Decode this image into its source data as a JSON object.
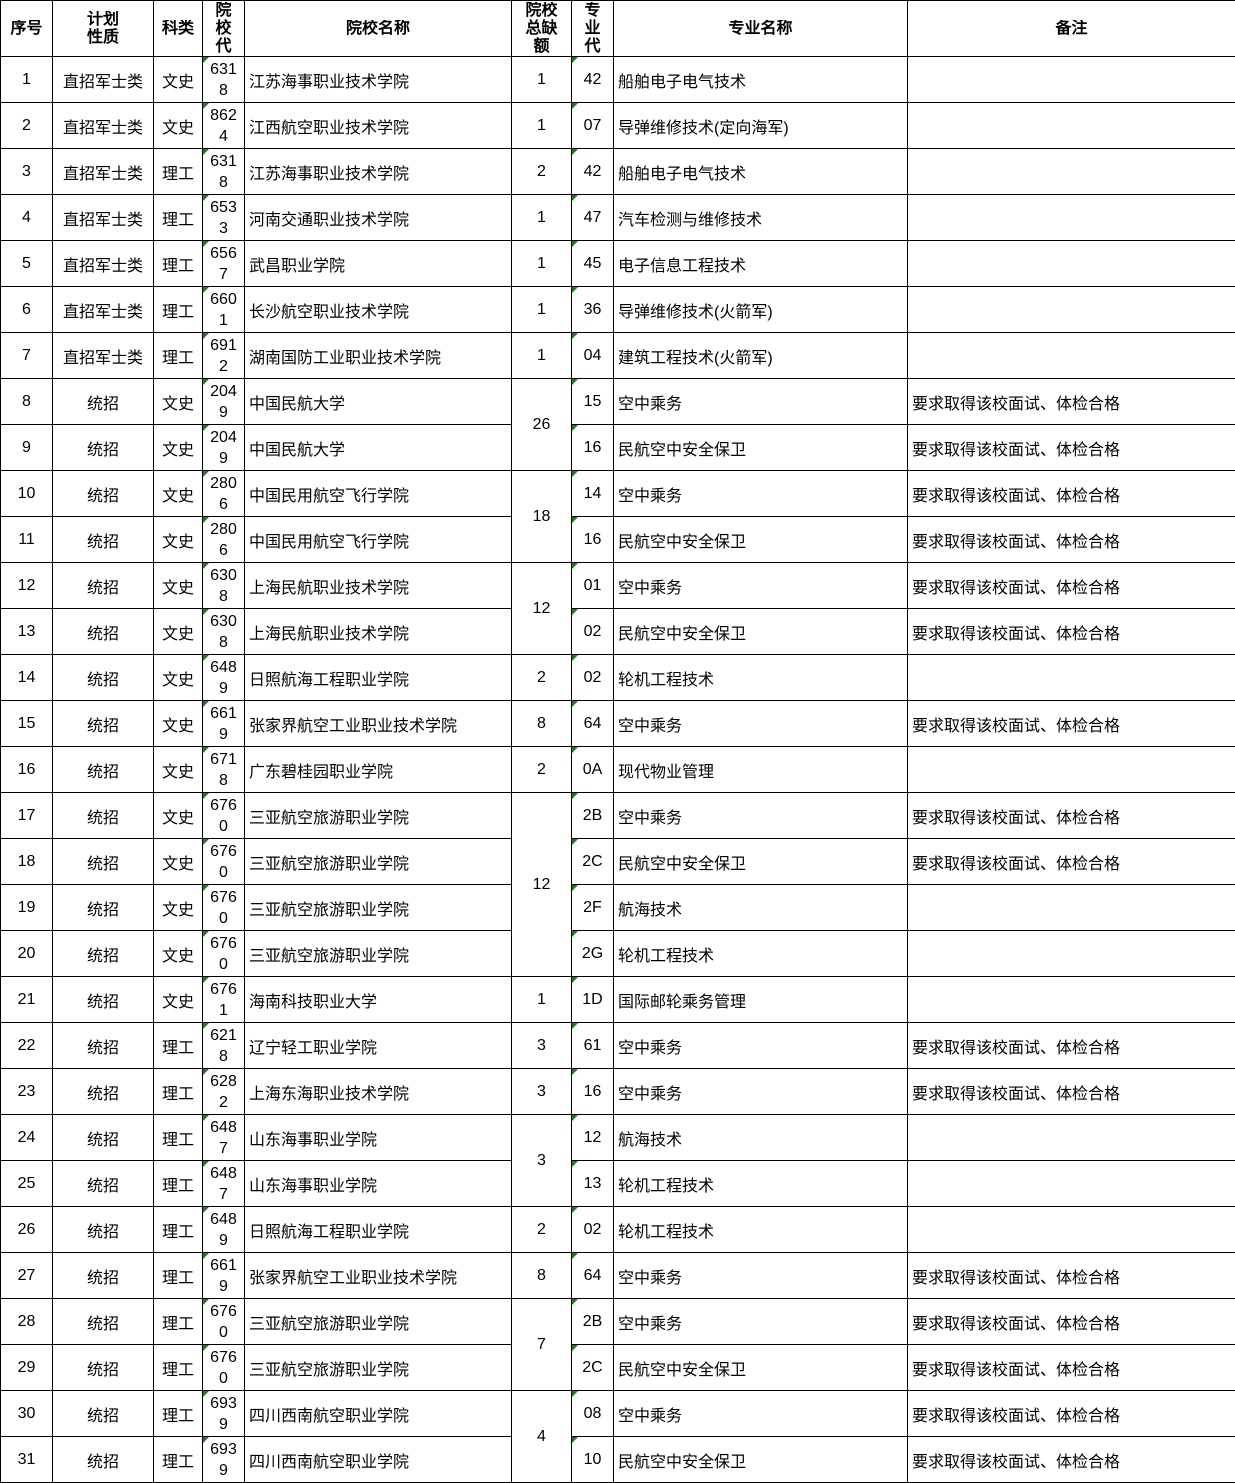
{
  "headers": [
    "序号",
    "计划性质",
    "科类",
    "院校代",
    "院校名称",
    "院校总缺额",
    "专业代",
    "专业名称",
    "备注"
  ],
  "rows": [
    [
      "1",
      "直招军士类",
      "文史",
      "6318",
      "江苏海事职业技术学院",
      "1",
      "42",
      "船舶电子电气技术",
      ""
    ],
    [
      "2",
      "直招军士类",
      "文史",
      "8624",
      "江西航空职业技术学院",
      "1",
      "07",
      "导弹维修技术(定向海军)",
      ""
    ],
    [
      "3",
      "直招军士类",
      "理工",
      "6318",
      "江苏海事职业技术学院",
      "2",
      "42",
      "船舶电子电气技术",
      ""
    ],
    [
      "4",
      "直招军士类",
      "理工",
      "6533",
      "河南交通职业技术学院",
      "1",
      "47",
      "汽车检测与维修技术",
      ""
    ],
    [
      "5",
      "直招军士类",
      "理工",
      "6567",
      "武昌职业学院",
      "1",
      "45",
      "电子信息工程技术",
      ""
    ],
    [
      "6",
      "直招军士类",
      "理工",
      "6601",
      "长沙航空职业技术学院",
      "1",
      "36",
      "导弹维修技术(火箭军)",
      ""
    ],
    [
      "7",
      "直招军士类",
      "理工",
      "6912",
      "湖南国防工业职业技术学院",
      "1",
      "04",
      "建筑工程技术(火箭军)",
      ""
    ],
    [
      "8",
      "统招",
      "文史",
      "2049",
      "中国民航大学",
      "26",
      "15",
      "空中乘务",
      "要求取得该校面试、体检合格"
    ],
    [
      "9",
      "统招",
      "文史",
      "2049",
      "中国民航大学",
      null,
      "16",
      "民航空中安全保卫",
      "要求取得该校面试、体检合格"
    ],
    [
      "10",
      "统招",
      "文史",
      "2806",
      "中国民用航空飞行学院",
      "18",
      "14",
      "空中乘务",
      "要求取得该校面试、体检合格"
    ],
    [
      "11",
      "统招",
      "文史",
      "2806",
      "中国民用航空飞行学院",
      null,
      "16",
      "民航空中安全保卫",
      "要求取得该校面试、体检合格"
    ],
    [
      "12",
      "统招",
      "文史",
      "6308",
      "上海民航职业技术学院",
      "12",
      "01",
      "空中乘务",
      "要求取得该校面试、体检合格"
    ],
    [
      "13",
      "统招",
      "文史",
      "6308",
      "上海民航职业技术学院",
      null,
      "02",
      "民航空中安全保卫",
      "要求取得该校面试、体检合格"
    ],
    [
      "14",
      "统招",
      "文史",
      "6489",
      "日照航海工程职业学院",
      "2",
      "02",
      "轮机工程技术",
      ""
    ],
    [
      "15",
      "统招",
      "文史",
      "6619",
      "张家界航空工业职业技术学院",
      "8",
      "64",
      "空中乘务",
      "要求取得该校面试、体检合格"
    ],
    [
      "16",
      "统招",
      "文史",
      "6718",
      "广东碧桂园职业学院",
      "2",
      "0A",
      "现代物业管理",
      ""
    ],
    [
      "17",
      "统招",
      "文史",
      "6760",
      "三亚航空旅游职业学院",
      "12",
      "2B",
      "空中乘务",
      "要求取得该校面试、体检合格"
    ],
    [
      "18",
      "统招",
      "文史",
      "6760",
      "三亚航空旅游职业学院",
      null,
      "2C",
      "民航空中安全保卫",
      "要求取得该校面试、体检合格"
    ],
    [
      "19",
      "统招",
      "文史",
      "6760",
      "三亚航空旅游职业学院",
      null,
      "2F",
      "航海技术",
      ""
    ],
    [
      "20",
      "统招",
      "文史",
      "6760",
      "三亚航空旅游职业学院",
      null,
      "2G",
      "轮机工程技术",
      ""
    ],
    [
      "21",
      "统招",
      "文史",
      "6761",
      "海南科技职业大学",
      "1",
      "1D",
      "国际邮轮乘务管理",
      ""
    ],
    [
      "22",
      "统招",
      "理工",
      "6218",
      "辽宁轻工职业学院",
      "3",
      "61",
      "空中乘务",
      "要求取得该校面试、体检合格"
    ],
    [
      "23",
      "统招",
      "理工",
      "6282",
      "上海东海职业技术学院",
      "3",
      "16",
      "空中乘务",
      "要求取得该校面试、体检合格"
    ],
    [
      "24",
      "统招",
      "理工",
      "6487",
      "山东海事职业学院",
      "3",
      "12",
      "航海技术",
      ""
    ],
    [
      "25",
      "统招",
      "理工",
      "6487",
      "山东海事职业学院",
      null,
      "13",
      "轮机工程技术",
      ""
    ],
    [
      "26",
      "统招",
      "理工",
      "6489",
      "日照航海工程职业学院",
      "2",
      "02",
      "轮机工程技术",
      ""
    ],
    [
      "27",
      "统招",
      "理工",
      "6619",
      "张家界航空工业职业技术学院",
      "8",
      "64",
      "空中乘务",
      "要求取得该校面试、体检合格"
    ],
    [
      "28",
      "统招",
      "理工",
      "6760",
      "三亚航空旅游职业学院",
      "7",
      "2B",
      "空中乘务",
      "要求取得该校面试、体检合格"
    ],
    [
      "29",
      "统招",
      "理工",
      "6760",
      "三亚航空旅游职业学院",
      null,
      "2C",
      "民航空中安全保卫",
      "要求取得该校面试、体检合格"
    ],
    [
      "30",
      "统招",
      "理工",
      "6939",
      "四川西南航空职业学院",
      "4",
      "08",
      "空中乘务",
      "要求取得该校面试、体检合格"
    ],
    [
      "31",
      "统招",
      "理工",
      "6939",
      "四川西南航空职业学院",
      null,
      "10",
      "民航空中安全保卫",
      "要求取得该校面试、体检合格"
    ]
  ]
}
